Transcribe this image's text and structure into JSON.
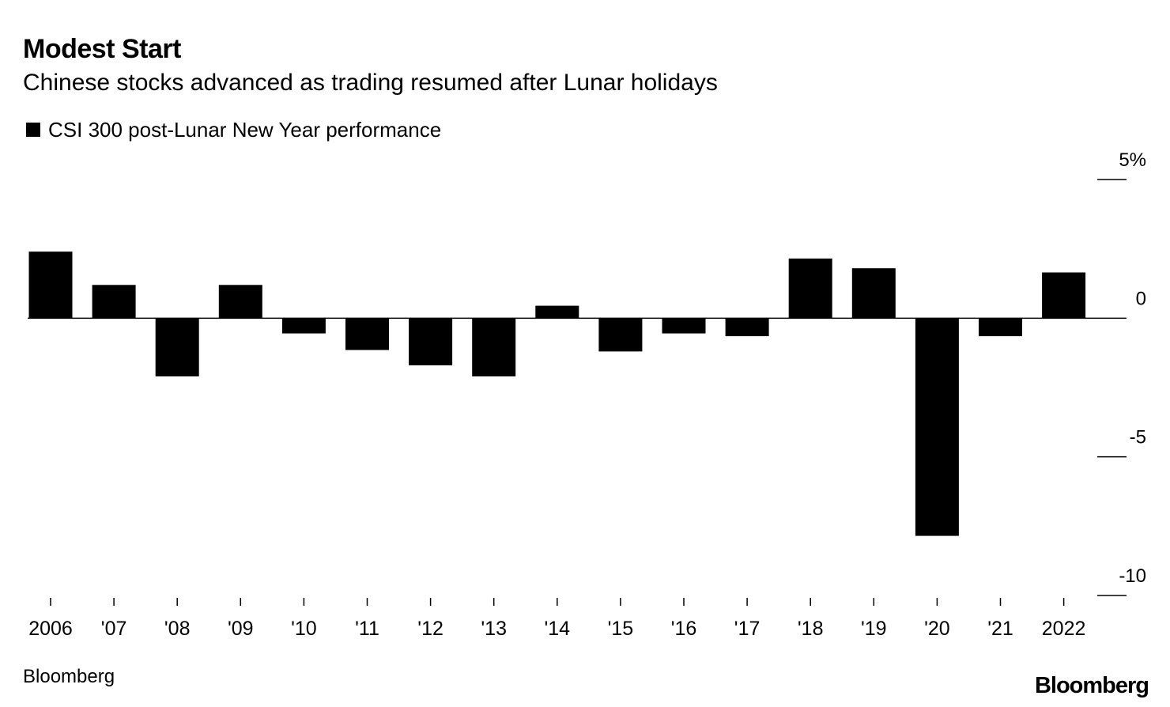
{
  "chart_data": {
    "type": "bar",
    "title": "Modest Start",
    "subtitle": "Chinese stocks advanced as trading resumed after Lunar holidays",
    "legend": [
      {
        "label": "CSI 300 post-Lunar New Year performance",
        "color": "#000000"
      }
    ],
    "series": [
      {
        "name": "CSI 300 post-Lunar New Year performance",
        "values": [
          2.4,
          1.2,
          -2.1,
          1.2,
          -0.55,
          -1.15,
          -1.7,
          -2.1,
          0.45,
          -1.2,
          -0.55,
          -0.65,
          2.15,
          1.8,
          -7.85,
          -0.65,
          1.65
        ]
      }
    ],
    "categories": [
      "2006",
      "'07",
      "'08",
      "'09",
      "'10",
      "'11",
      "'12",
      "'13",
      "'14",
      "'15",
      "'16",
      "'17",
      "'18",
      "'19",
      "'20",
      "'21",
      "2022"
    ],
    "ylim": [
      -10,
      5
    ],
    "yticks": [
      5,
      0,
      -5,
      -10
    ],
    "ytick_labels": [
      "5%",
      "0",
      "-5",
      "-10"
    ],
    "xlabel": "",
    "ylabel": "",
    "grid": false,
    "bar_color": "#000000"
  },
  "footer": {
    "source": "Bloomberg",
    "logo": "Bloomberg"
  }
}
